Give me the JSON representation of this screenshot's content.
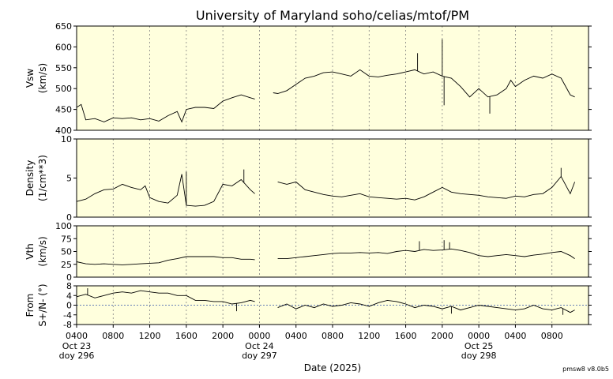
{
  "chart_data": {
    "type": "line",
    "title": "University of Maryland  soho/celias/mtof/PM",
    "xlabel": "Date (2025)",
    "version": "pmsw8 v8.0b5",
    "colors": {
      "background": "#ffffdd",
      "line": "#000000",
      "grid": "#808080"
    },
    "x_axis": {
      "range_hours": [
        0,
        56
      ],
      "tick_labels": [
        "0400",
        "0800",
        "1200",
        "1600",
        "2000",
        "0000",
        "0400",
        "0800",
        "1200",
        "1600",
        "2000",
        "0000",
        "0400",
        "0800"
      ],
      "date_labels": [
        {
          "tick_index": 0,
          "line1": "Oct 23",
          "line2": "doy 296"
        },
        {
          "tick_index": 5,
          "line1": "Oct 24",
          "line2": "doy 297"
        },
        {
          "tick_index": 11,
          "line1": "Oct 25",
          "line2": "doy 298"
        }
      ],
      "grid": "dotted"
    },
    "panels": [
      {
        "name": "Vsw",
        "ylabel": [
          "Vsw",
          "(km/s)"
        ],
        "ylim": [
          400,
          650
        ],
        "yticks": [
          "400",
          "450",
          "500",
          "550",
          "600",
          "650"
        ],
        "segments": [
          {
            "x": [
              0,
              0.5,
              1,
              2,
              3,
              4,
              5,
              6,
              7,
              8,
              9,
              10,
              11,
              11.5,
              12,
              13,
              14,
              15,
              16,
              17,
              18,
              19,
              19.5
            ],
            "y": [
              455,
              462,
              425,
              428,
              420,
              430,
              428,
              430,
              425,
              428,
              422,
              435,
              445,
              420,
              450,
              455,
              455,
              452,
              470,
              478,
              485,
              478,
              475
            ]
          },
          {
            "x": [
              21.5,
              22,
              23,
              24,
              25,
              26,
              27,
              28,
              29,
              30,
              31,
              32,
              33,
              34,
              35,
              36,
              37,
              38,
              39,
              40,
              41,
              42,
              43,
              44,
              45,
              46,
              47,
              47.5,
              48,
              49,
              50,
              51,
              52,
              53,
              54,
              54.5
            ],
            "y": [
              490,
              488,
              495,
              510,
              525,
              530,
              538,
              540,
              535,
              530,
              545,
              530,
              528,
              532,
              535,
              540,
              545,
              535,
              540,
              530,
              525,
              505,
              480,
              500,
              480,
              485,
              500,
              520,
              505,
              520,
              530,
              525,
              535,
              525,
              485,
              480
            ]
          }
        ],
        "spikes": [
          [
            40,
            618
          ],
          [
            37.3,
            585
          ],
          [
            45.2,
            440
          ],
          [
            40.2,
            460
          ]
        ]
      },
      {
        "name": "Density",
        "ylabel": [
          "Density",
          "(1/cm**3)"
        ],
        "ylim": [
          0,
          10
        ],
        "yticks": [
          "0",
          "5",
          "10"
        ],
        "segments": [
          {
            "x": [
              0,
              1,
              2,
              3,
              4,
              5,
              6,
              7,
              7.5,
              8,
              9,
              10,
              11,
              11.5,
              12,
              13,
              14,
              15,
              16,
              17,
              18,
              19,
              19.5
            ],
            "y": [
              2.0,
              2.3,
              3.0,
              3.5,
              3.6,
              4.2,
              3.8,
              3.5,
              4.0,
              2.5,
              2.0,
              1.8,
              2.8,
              5.5,
              1.5,
              1.4,
              1.5,
              2.0,
              4.2,
              4.0,
              4.8,
              3.5,
              3.0
            ]
          },
          {
            "x": [
              22,
              23,
              24,
              25,
              26,
              27,
              28,
              29,
              30,
              31,
              32,
              33,
              34,
              35,
              36,
              37,
              38,
              39,
              40,
              41,
              42,
              43,
              44,
              45,
              46,
              47,
              48,
              49,
              50,
              51,
              52,
              53,
              54,
              54.5
            ],
            "y": [
              4.5,
              4.2,
              4.5,
              3.5,
              3.2,
              2.9,
              2.7,
              2.6,
              2.8,
              3.0,
              2.6,
              2.5,
              2.4,
              2.3,
              2.4,
              2.2,
              2.6,
              3.2,
              3.8,
              3.2,
              3.0,
              2.9,
              2.8,
              2.6,
              2.5,
              2.4,
              2.7,
              2.6,
              2.9,
              3.0,
              3.8,
              5.2,
              3.0,
              4.5
            ]
          }
        ],
        "spikes": [
          [
            18.3,
            6.1
          ],
          [
            12,
            5.8
          ],
          [
            53,
            6.3
          ]
        ]
      },
      {
        "name": "Vth",
        "ylabel": [
          "Vth",
          "(km/s)"
        ],
        "ylim": [
          0,
          100
        ],
        "yticks": [
          "0",
          "25",
          "50",
          "75",
          "100"
        ],
        "segments": [
          {
            "x": [
              0,
              1,
              2,
              3,
              4,
              5,
              6,
              7,
              8,
              9,
              10,
              11,
              12,
              13,
              14,
              15,
              16,
              17,
              18,
              19,
              19.5
            ],
            "y": [
              30,
              26,
              25,
              26,
              25,
              24,
              25,
              26,
              27,
              28,
              33,
              36,
              40,
              40,
              40,
              40,
              38,
              38,
              35,
              35,
              34
            ]
          },
          {
            "x": [
              22,
              23,
              24,
              25,
              26,
              27,
              28,
              29,
              30,
              31,
              32,
              33,
              34,
              35,
              36,
              37,
              38,
              39,
              40,
              41,
              42,
              43,
              44,
              45,
              46,
              47,
              48,
              49,
              50,
              51,
              52,
              53,
              54,
              54.5
            ],
            "y": [
              36,
              36,
              38,
              40,
              42,
              44,
              46,
              47,
              47,
              48,
              47,
              48,
              46,
              50,
              52,
              50,
              54,
              52,
              53,
              55,
              52,
              48,
              42,
              40,
              42,
              44,
              42,
              40,
              43,
              45,
              48,
              50,
              42,
              36
            ]
          }
        ],
        "spikes": [
          [
            37.5,
            70
          ],
          [
            40.2,
            72
          ],
          [
            40.8,
            68
          ]
        ]
      },
      {
        "name": "From S+/N-",
        "ylabel": [
          "From",
          "S+/N- (°)"
        ],
        "ylim": [
          -8,
          8
        ],
        "yticks": [
          "-8",
          "-4",
          "0",
          "4",
          "8"
        ],
        "zero_line": true,
        "segments": [
          {
            "x": [
              0,
              1,
              2,
              3,
              4,
              5,
              6,
              7,
              8,
              9,
              10,
              11,
              12,
              13,
              14,
              15,
              16,
              17,
              18,
              19,
              19.5
            ],
            "y": [
              3.5,
              4.5,
              3.0,
              4.0,
              5.0,
              5.5,
              5.0,
              6.0,
              5.5,
              5.0,
              5.0,
              4.0,
              4.0,
              2.0,
              2.0,
              1.5,
              1.5,
              0.5,
              1.0,
              2.0,
              1.5
            ]
          },
          {
            "x": [
              22,
              23,
              24,
              25,
              26,
              27,
              28,
              29,
              30,
              31,
              32,
              33,
              34,
              35,
              36,
              37,
              38,
              39,
              40,
              41,
              42,
              43,
              44,
              45,
              46,
              47,
              48,
              49,
              50,
              51,
              52,
              53,
              54,
              54.5
            ],
            "y": [
              -1.0,
              0.5,
              -1.5,
              0.0,
              -1.0,
              0.5,
              -0.5,
              0.0,
              1.0,
              0.5,
              -0.5,
              1.0,
              2.0,
              1.5,
              0.5,
              -1.0,
              0.0,
              -0.5,
              -1.5,
              -0.5,
              -2.0,
              -1.0,
              0.0,
              -0.5,
              -1.0,
              -1.5,
              -2.0,
              -1.5,
              0.0,
              -1.5,
              -2.0,
              -1.0,
              -3.0,
              -2.0
            ]
          }
        ],
        "spikes": [
          [
            1.2,
            7.0
          ],
          [
            17.5,
            -2.5
          ],
          [
            41,
            -3.5
          ],
          [
            53.2,
            -4.0
          ]
        ]
      }
    ]
  }
}
